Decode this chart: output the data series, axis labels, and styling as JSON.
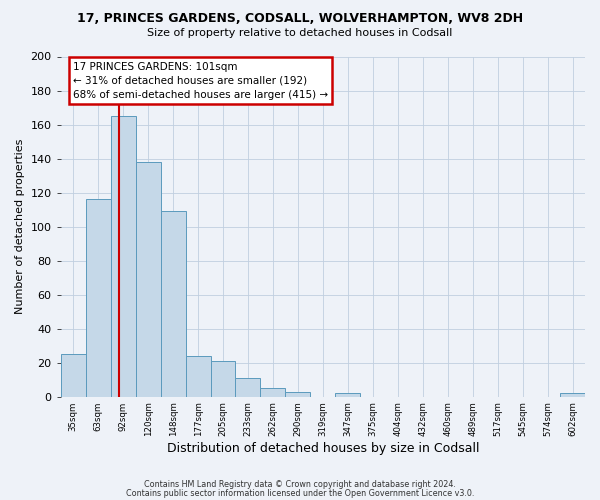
{
  "title": "17, PRINCES GARDENS, CODSALL, WOLVERHAMPTON, WV8 2DH",
  "subtitle": "Size of property relative to detached houses in Codsall",
  "xlabel": "Distribution of detached houses by size in Codsall",
  "ylabel": "Number of detached properties",
  "bar_color": "#c5d8e8",
  "bar_edge_color": "#5b9abd",
  "background_color": "#eef2f8",
  "grid_color": "#c0cfe0",
  "annotation_box_color": "#ffffff",
  "annotation_box_edge": "#cc0000",
  "red_line_color": "#cc0000",
  "annotation_title": "17 PRINCES GARDENS: 101sqm",
  "annotation_line1": "← 31% of detached houses are smaller (192)",
  "annotation_line2": "68% of semi-detached houses are larger (415) →",
  "categories": [
    "35sqm",
    "63sqm",
    "92sqm",
    "120sqm",
    "148sqm",
    "177sqm",
    "205sqm",
    "233sqm",
    "262sqm",
    "290sqm",
    "319sqm",
    "347sqm",
    "375sqm",
    "404sqm",
    "432sqm",
    "460sqm",
    "489sqm",
    "517sqm",
    "545sqm",
    "574sqm",
    "602sqm"
  ],
  "bin_left_edges": [
    35,
    63,
    92,
    120,
    148,
    177,
    205,
    233,
    262,
    290,
    319,
    347,
    375,
    404,
    432,
    460,
    489,
    517,
    545,
    574,
    602
  ],
  "bin_width": 28,
  "values": [
    25,
    116,
    165,
    138,
    109,
    24,
    21,
    11,
    5,
    3,
    0,
    2,
    0,
    0,
    0,
    0,
    0,
    0,
    0,
    0,
    2
  ],
  "ylim": [
    0,
    200
  ],
  "yticks": [
    0,
    20,
    40,
    60,
    80,
    100,
    120,
    140,
    160,
    180,
    200
  ],
  "property_sqm": 101,
  "footer1": "Contains HM Land Registry data © Crown copyright and database right 2024.",
  "footer2": "Contains public sector information licensed under the Open Government Licence v3.0."
}
